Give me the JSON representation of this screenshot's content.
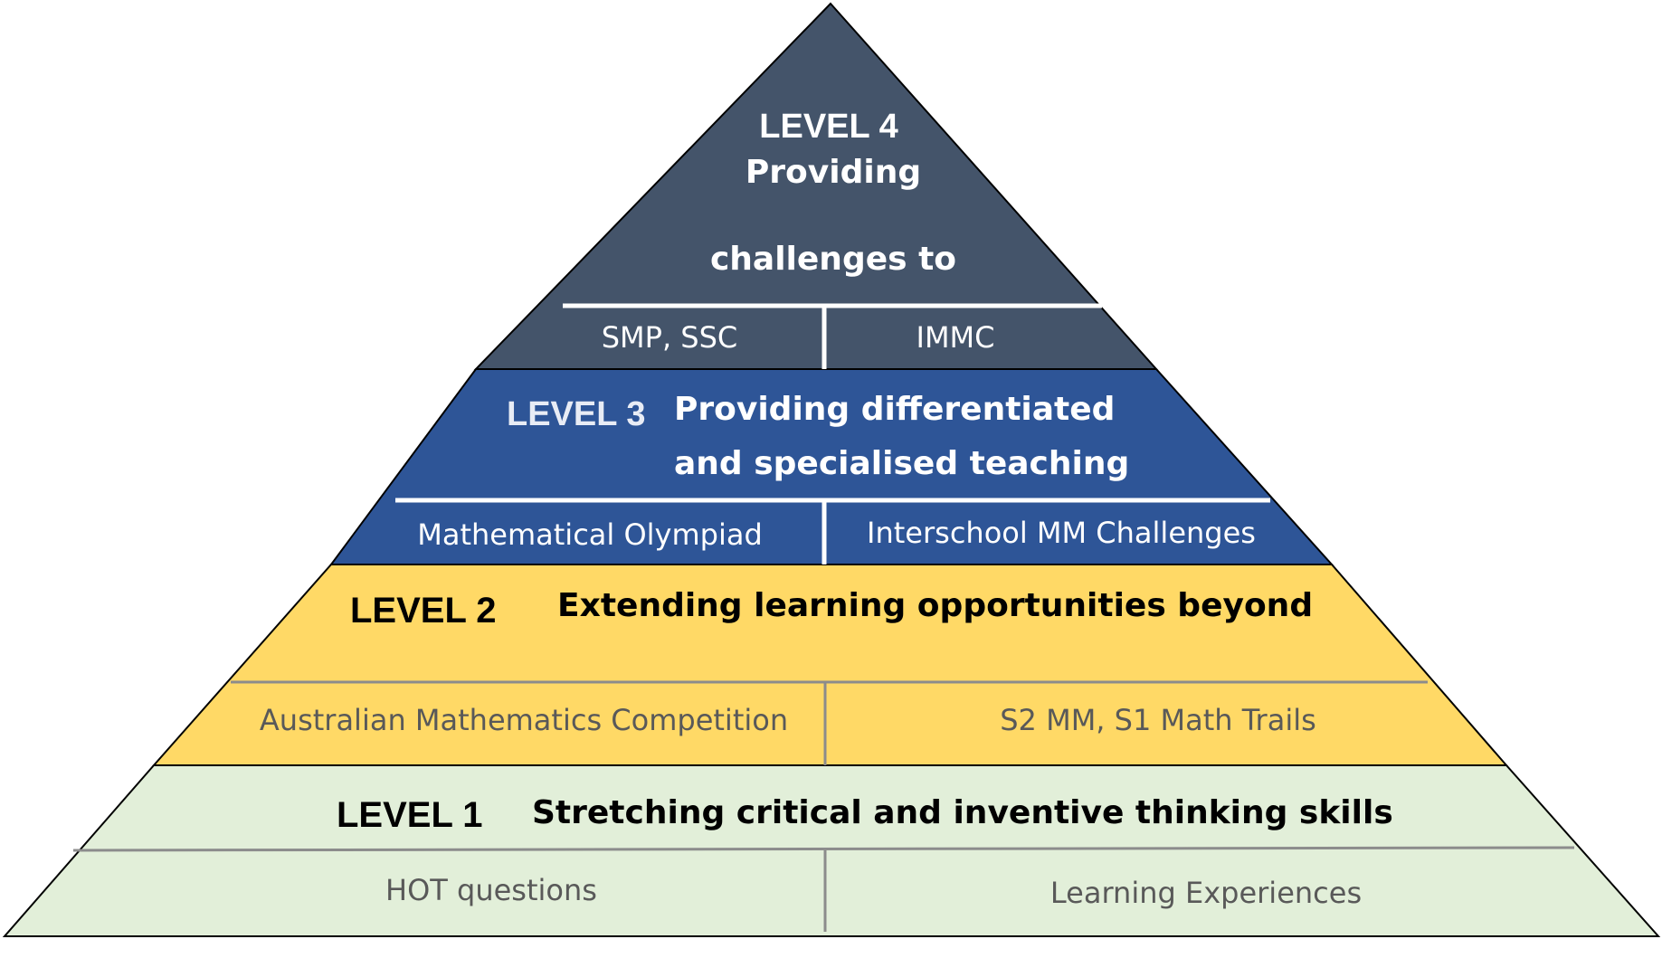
{
  "colors": {
    "level4": "#44546a",
    "level3": "#2e5597",
    "level2": "#ffd966",
    "level1": "#e2efd9",
    "outline": "#000000",
    "light_text": "#ffffff",
    "dark_text": "#000000",
    "grey_text": "#595959"
  },
  "pyramid": {
    "level4": {
      "level_label": "LEVEL 4",
      "title_line1": "Providing",
      "title_line2": "challenges to",
      "items": [
        "SMP, SSC",
        "IMMC"
      ]
    },
    "level3": {
      "level_label": "LEVEL 3",
      "title_line1": "Providing differentiated",
      "title_line2": "and specialised teaching",
      "items": [
        "Mathematical Olympiad",
        "Interschool MM Challenges"
      ]
    },
    "level2": {
      "level_label": "LEVEL 2",
      "title": "Extending learning opportunities beyond",
      "items": [
        "Australian Mathematics Competition",
        "S2 MM, S1 Math Trails"
      ]
    },
    "level1": {
      "level_label": "LEVEL 1",
      "title": "Stretching critical and inventive thinking skills",
      "items": [
        "HOT questions",
        "Learning Experiences"
      ]
    }
  }
}
